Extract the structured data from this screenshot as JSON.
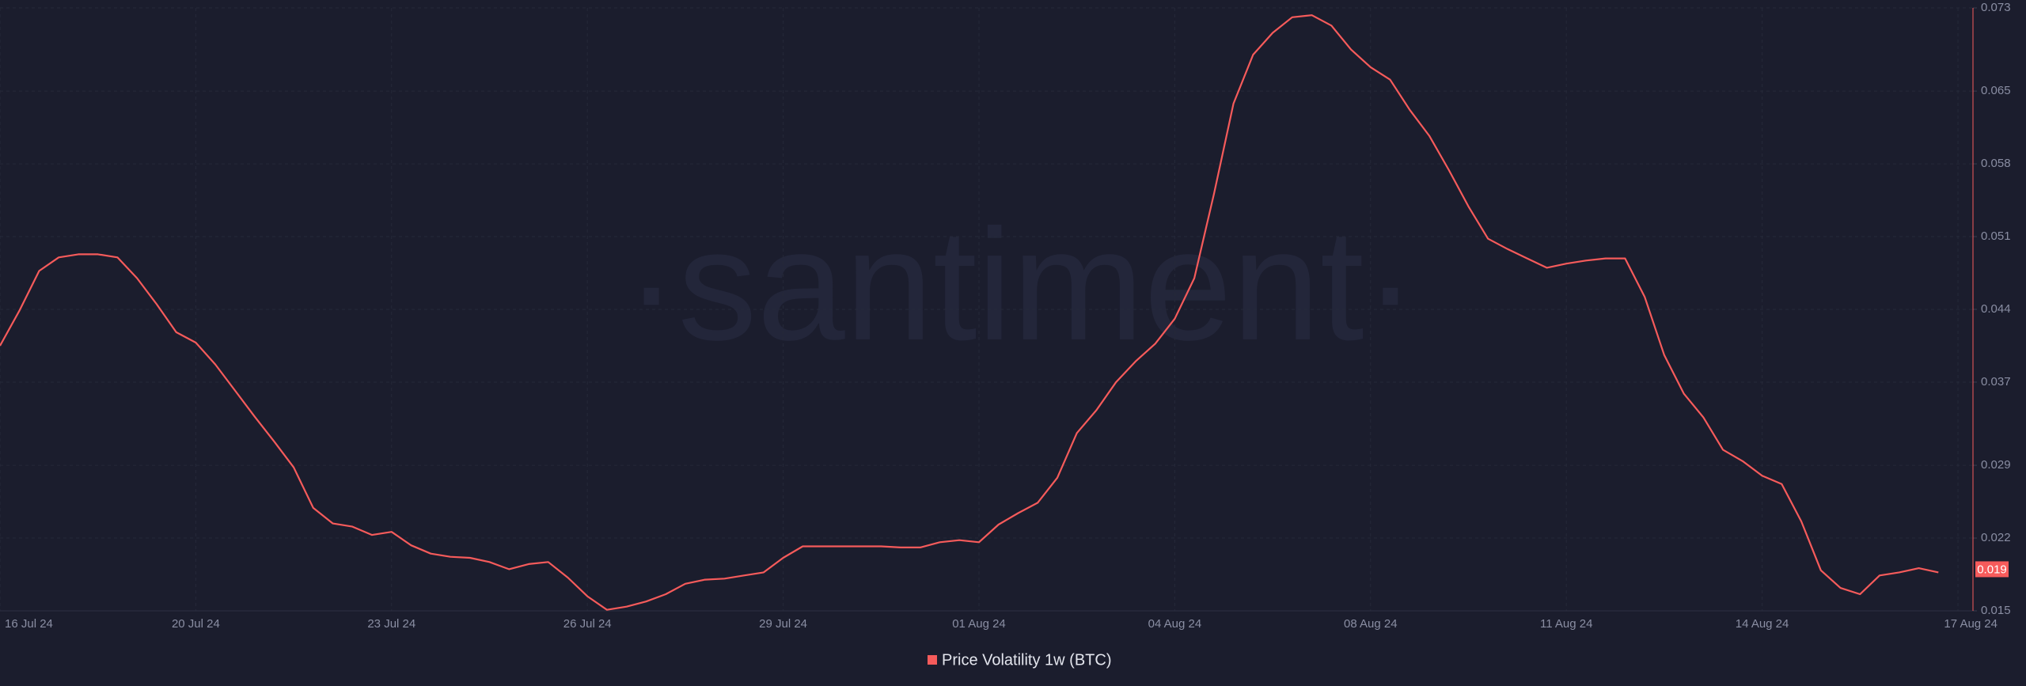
{
  "chart_data": {
    "type": "line",
    "watermark": "·santiment·",
    "categories": [
      "16 Jul 24",
      null,
      null,
      null,
      null,
      null,
      null,
      null,
      null,
      null,
      "20 Jul 24",
      null,
      null,
      null,
      null,
      null,
      null,
      null,
      null,
      null,
      "23 Jul 24",
      null,
      null,
      null,
      null,
      null,
      null,
      null,
      null,
      null,
      "26 Jul 24",
      null,
      null,
      null,
      null,
      null,
      null,
      null,
      null,
      null,
      "29 Jul 24",
      null,
      null,
      null,
      null,
      null,
      null,
      null,
      null,
      null,
      "01 Aug 24",
      null,
      null,
      null,
      null,
      null,
      null,
      null,
      null,
      null,
      "04 Aug 24",
      null,
      null,
      null,
      null,
      null,
      null,
      null,
      null,
      null,
      "08 Aug 24",
      null,
      null,
      null,
      null,
      null,
      null,
      null,
      null,
      null,
      "11 Aug 24",
      null,
      null,
      null,
      null,
      null,
      null,
      null,
      null,
      null,
      "14 Aug 24",
      null,
      null,
      null,
      null,
      null,
      null,
      null,
      null,
      null,
      "17 Aug 24"
    ],
    "series": [
      {
        "name": "Price Volatility 1w (BTC)",
        "color": "#f65b5b",
        "values": [
          0.0405,
          0.0439,
          0.0477,
          0.049,
          0.0493,
          0.0493,
          0.049,
          0.047,
          0.0445,
          0.0418,
          0.0408,
          0.0387,
          0.0362,
          0.0337,
          0.0313,
          0.0288,
          0.0249,
          0.0234,
          0.0231,
          0.0223,
          0.0226,
          0.0213,
          0.0205,
          0.0202,
          0.0201,
          0.0197,
          0.019,
          0.0195,
          0.0197,
          0.0182,
          0.0164,
          0.0151,
          0.0154,
          0.0159,
          0.0166,
          0.0176,
          0.018,
          0.0181,
          0.0184,
          0.0187,
          0.0201,
          0.0212,
          0.0212,
          0.0212,
          0.0212,
          0.0212,
          0.0211,
          0.0211,
          0.0216,
          0.0218,
          0.0216,
          0.0233,
          0.0244,
          0.0254,
          0.0278,
          0.0321,
          0.0343,
          0.037,
          0.039,
          0.0407,
          0.0431,
          0.047,
          0.0551,
          0.0638,
          0.0685,
          0.0706,
          0.0721,
          0.0723,
          0.0713,
          0.069,
          0.0673,
          0.0661,
          0.0632,
          0.0607,
          0.0574,
          0.0539,
          0.0508,
          0.0498,
          0.0489,
          0.048,
          0.0484,
          0.0487,
          0.0489,
          0.0489,
          0.0452,
          0.0396,
          0.0359,
          0.0336,
          0.0305,
          0.0294,
          0.028,
          0.0272,
          0.0236,
          0.0189,
          0.0172,
          0.0166,
          0.0184,
          0.0187,
          0.0191,
          0.0187,
          null
        ]
      }
    ],
    "last_value": 0.019,
    "ylim": [
      0.015,
      0.073
    ],
    "yticks": [
      0.015,
      0.022,
      0.029,
      0.037,
      0.044,
      0.051,
      0.058,
      0.065,
      0.073
    ],
    "grid": true,
    "legend": "bottom"
  }
}
